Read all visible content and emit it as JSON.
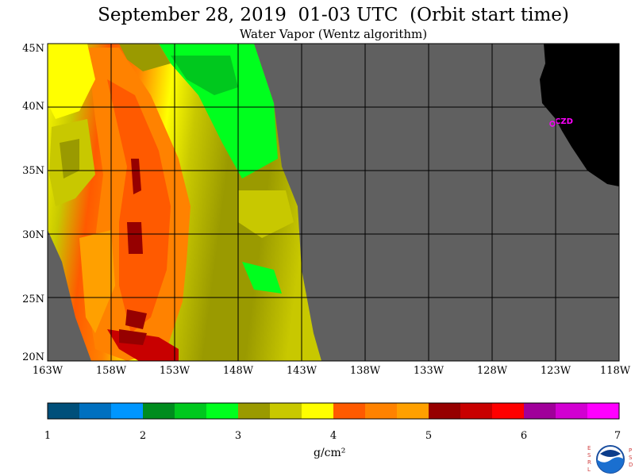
{
  "title": "September 28, 2019  01-03 UTC  (Orbit start time)",
  "subtitle": "Water Vapor (Wentz algorithm)",
  "lat_labels": [
    "45N",
    "40N",
    "35N",
    "30N",
    "25N",
    "20N"
  ],
  "lon_labels": [
    "163W",
    "158W",
    "153W",
    "148W",
    "143W",
    "138W",
    "133W",
    "128W",
    "123W",
    "118W"
  ],
  "station_label": "CZD",
  "colorbar": {
    "ticks": [
      "1",
      "2",
      "3",
      "4",
      "5",
      "6",
      "7"
    ],
    "units": "g/cm²",
    "colors": [
      "#004f7a",
      "#0070c0",
      "#0096ff",
      "#008c1e",
      "#00c81e",
      "#00ff1e",
      "#9a9a00",
      "#c8c800",
      "#ffff00",
      "#ff5a00",
      "#ff8200",
      "#ffa000",
      "#960000",
      "#c80000",
      "#ff0000",
      "#a0009a",
      "#d200d2",
      "#ff00ff"
    ]
  },
  "colors": {
    "no_data": "#606060",
    "land": "#000000",
    "station": "#ff00ff"
  },
  "logo": {
    "left_letters": "ESRL",
    "right_letters": "PSD",
    "center": "NOAA"
  }
}
